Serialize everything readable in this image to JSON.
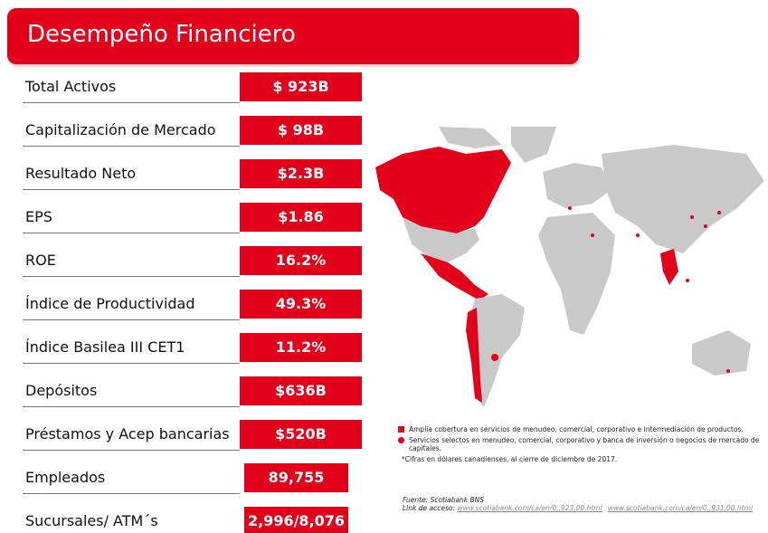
{
  "header": {
    "title": "Desempeño Financiero"
  },
  "metrics": [
    {
      "label": "Total Activos",
      "value": "$ 923B"
    },
    {
      "label": "Capitalización de Mercado",
      "value": "$ 98B"
    },
    {
      "label": "Resultado Neto",
      "value": "$2.3B"
    },
    {
      "label": "EPS",
      "value": "$1.86"
    },
    {
      "label": "ROE",
      "value": "16.2%"
    },
    {
      "label": "Índice de Productividad",
      "value": "49.3%"
    },
    {
      "label": "Índice Basilea III CET1",
      "value": "11.2%"
    },
    {
      "label": "Depósitos",
      "value": "$636B"
    },
    {
      "label": "Préstamos y Acep bancarias",
      "value": "$520B"
    },
    {
      "label": "Empleados",
      "value": "89,755"
    },
    {
      "label": "Sucursales/ ATM´s",
      "value": "2,996/8,076"
    }
  ],
  "legend": {
    "full_coverage": "Amplia cobertura  en servicios de menudeo, comercial, corporativo e intermediación de productos.",
    "select_services": "Servicios selectos en menudeo, comercial, corporativo y banca de inversión o negocios de mercado de capitales.",
    "note": "*Cifras en dólares canadienses, al cierre de  diciembre de 2017."
  },
  "source": {
    "text": "Fuente: Scotiabank BNS",
    "link_label": "Link de acceso:",
    "links": [
      "www.scotiabank.com/ca/en/0,,923,00.html",
      "www.scotiabank.com/ca/en/0,,931,00.html"
    ]
  }
}
